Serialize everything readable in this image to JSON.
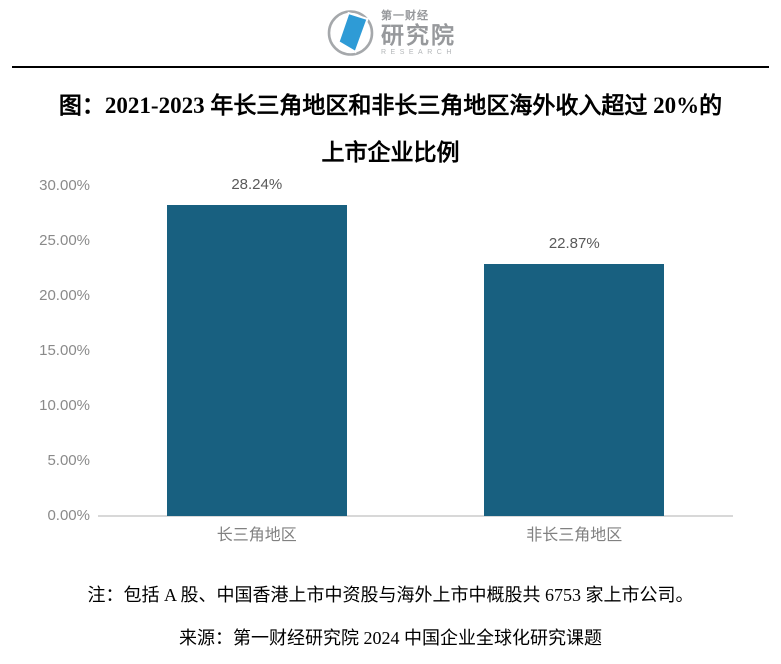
{
  "logo": {
    "line1": "第一财经",
    "line2": "研究院",
    "line3": "RESEARCH",
    "blue": "#2e9bd6",
    "gray": "#a5a8ab"
  },
  "title": {
    "line1": "图：2021-2023 年长三角地区和非长三角地区海外收入超过 20%的",
    "line2": "上市企业比例"
  },
  "chart_data": {
    "type": "bar",
    "categories": [
      "长三角地区",
      "非长三角地区"
    ],
    "values": [
      28.24,
      22.87
    ],
    "value_labels": [
      "28.24%",
      "22.87%"
    ],
    "yticks": [
      "30.00%",
      "25.00%",
      "20.00%",
      "15.00%",
      "10.00%",
      "5.00%",
      "0.00%"
    ],
    "ytick_values": [
      30,
      25,
      20,
      15,
      10,
      5,
      0
    ],
    "ylim": [
      0,
      30
    ],
    "bar_color": "#186080",
    "axis_line_color": "#d8d8d8",
    "grid": false,
    "legend": null,
    "title": "图：2021-2023 年长三角地区和非长三角地区海外收入超过 20%的上市企业比例"
  },
  "notes": {
    "note": "注：包括 A 股、中国香港上市中资股与海外上市中概股共 6753 家上市公司。",
    "source": "来源：第一财经研究院 2024 中国企业全球化研究课题"
  }
}
